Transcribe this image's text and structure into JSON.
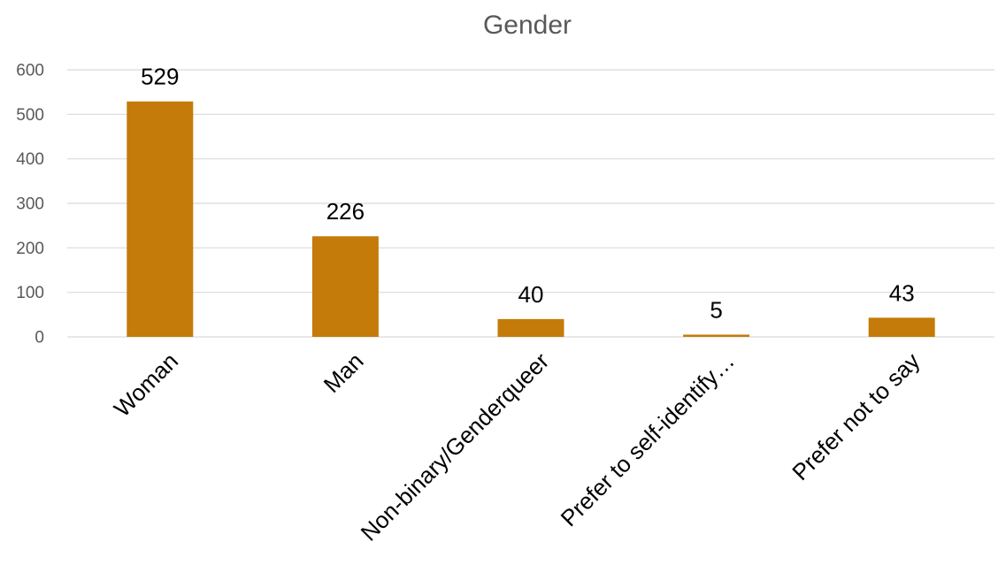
{
  "chart_data": {
    "type": "bar",
    "title": "Gender",
    "xlabel": "",
    "ylabel": "",
    "categories": [
      "Woman",
      "Man",
      "Non-binary/Genderqueer",
      "Prefer to self-identify…",
      "Prefer not to say"
    ],
    "values": [
      529,
      226,
      40,
      5,
      43
    ],
    "data_labels": [
      "529",
      "226",
      "40",
      "5",
      "43"
    ],
    "ylim": [
      0,
      600
    ],
    "yticks": [
      "0",
      "100",
      "200",
      "300",
      "400",
      "500",
      "600"
    ],
    "grid": true,
    "legend": "none",
    "bar_color": "#C47B09"
  }
}
